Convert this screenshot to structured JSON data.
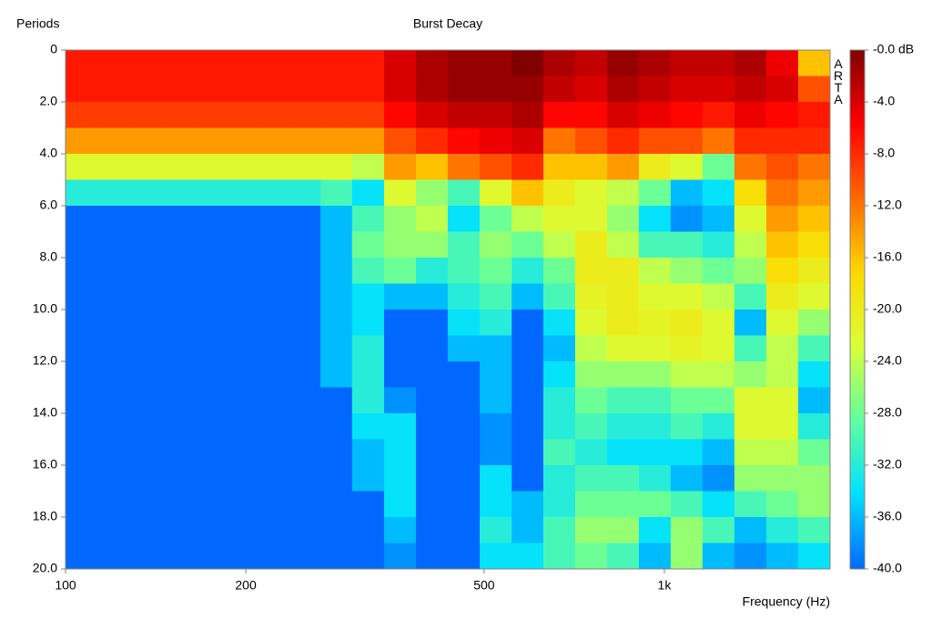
{
  "chart_data": {
    "type": "heatmap",
    "title": "Burst Decay",
    "ylabel": "Periods",
    "xlabel": "Frequency (Hz)",
    "watermark": "ARTA",
    "x": [
      106,
      120,
      136,
      154,
      174,
      196,
      222,
      251,
      283,
      320,
      362,
      409,
      462,
      523,
      591,
      667,
      755,
      853,
      964,
      1089,
      1231,
      1392,
      1573,
      1778
    ],
    "y": [
      0.5,
      1.5,
      2.5,
      3.5,
      4.5,
      5.5,
      6.5,
      7.5,
      8.5,
      9.5,
      10.5,
      11.5,
      12.5,
      13.5,
      14.5,
      15.5,
      16.5,
      17.5,
      18.5,
      19.5
    ],
    "values": [
      [
        -7,
        -7,
        -7,
        -7,
        -7,
        -7,
        -7,
        -7,
        -7,
        -7,
        -4,
        -2,
        -1,
        -1,
        0,
        -2,
        -3,
        -1,
        -2,
        -3,
        -3,
        -2,
        -5,
        -16
      ],
      [
        -7,
        -7,
        -7,
        -7,
        -7,
        -7,
        -7,
        -7,
        -7,
        -7,
        -4,
        -2,
        -1,
        -1,
        -1,
        -3,
        -4,
        -2,
        -3,
        -4,
        -4,
        -3,
        -4,
        -10
      ],
      [
        -9,
        -9,
        -9,
        -9,
        -9,
        -9,
        -9,
        -9,
        -9,
        -9,
        -6,
        -4,
        -3,
        -3,
        -2,
        -6,
        -6,
        -4,
        -5,
        -6,
        -7,
        -5,
        -6,
        -7
      ],
      [
        -14,
        -14,
        -14,
        -14,
        -14,
        -14,
        -14,
        -14,
        -14,
        -14,
        -10,
        -8,
        -6,
        -5,
        -4,
        -12,
        -10,
        -8,
        -10,
        -10,
        -12,
        -8,
        -8,
        -8
      ],
      [
        -22,
        -22,
        -22,
        -22,
        -22,
        -22,
        -22,
        -22,
        -22,
        -24,
        -14,
        -16,
        -12,
        -10,
        -8,
        -16,
        -16,
        -14,
        -20,
        -22,
        -28,
        -12,
        -10,
        -12
      ],
      [
        -32,
        -32,
        -32,
        -32,
        -32,
        -32,
        -32,
        -32,
        -30,
        -34,
        -22,
        -26,
        -30,
        -22,
        -16,
        -20,
        -22,
        -24,
        -28,
        -36,
        -34,
        -18,
        -12,
        -14
      ],
      [
        -40,
        -40,
        -40,
        -40,
        -40,
        -40,
        -40,
        -40,
        -36,
        -30,
        -26,
        -24,
        -34,
        -28,
        -24,
        -22,
        -22,
        -26,
        -34,
        -38,
        -36,
        -22,
        -14,
        -16
      ],
      [
        -40,
        -40,
        -40,
        -40,
        -40,
        -40,
        -40,
        -40,
        -36,
        -28,
        -26,
        -26,
        -30,
        -26,
        -28,
        -24,
        -20,
        -24,
        -30,
        -30,
        -32,
        -24,
        -16,
        -18
      ],
      [
        -40,
        -40,
        -40,
        -40,
        -40,
        -40,
        -40,
        -40,
        -36,
        -30,
        -28,
        -32,
        -30,
        -28,
        -32,
        -28,
        -20,
        -20,
        -24,
        -26,
        -28,
        -26,
        -18,
        -20
      ],
      [
        -40,
        -40,
        -40,
        -40,
        -40,
        -40,
        -40,
        -40,
        -36,
        -34,
        -36,
        -36,
        -32,
        -30,
        -36,
        -30,
        -21,
        -20,
        -22,
        -22,
        -24,
        -30,
        -20,
        -22
      ],
      [
        -40,
        -40,
        -40,
        -40,
        -40,
        -40,
        -40,
        -40,
        -36,
        -34,
        -40,
        -40,
        -34,
        -32,
        -40,
        -34,
        -22,
        -20,
        -21,
        -20,
        -22,
        -36,
        -22,
        -26
      ],
      [
        -40,
        -40,
        -40,
        -40,
        -40,
        -40,
        -40,
        -40,
        -36,
        -32,
        -40,
        -40,
        -36,
        -36,
        -40,
        -36,
        -24,
        -22,
        -22,
        -21,
        -22,
        -30,
        -24,
        -30
      ],
      [
        -40,
        -40,
        -40,
        -40,
        -40,
        -40,
        -40,
        -40,
        -36,
        -32,
        -40,
        -40,
        -40,
        -36,
        -40,
        -34,
        -26,
        -26,
        -26,
        -24,
        -24,
        -26,
        -24,
        -34
      ],
      [
        -40,
        -40,
        -40,
        -40,
        -40,
        -40,
        -40,
        -40,
        -40,
        -32,
        -38,
        -40,
        -40,
        -36,
        -40,
        -32,
        -28,
        -30,
        -30,
        -28,
        -28,
        -22,
        -22,
        -36
      ],
      [
        -40,
        -40,
        -40,
        -40,
        -40,
        -40,
        -40,
        -40,
        -40,
        -34,
        -34,
        -40,
        -40,
        -38,
        -40,
        -32,
        -30,
        -32,
        -32,
        -30,
        -32,
        -22,
        -22,
        -32
      ],
      [
        -40,
        -40,
        -40,
        -40,
        -40,
        -40,
        -40,
        -40,
        -40,
        -36,
        -34,
        -40,
        -40,
        -38,
        -40,
        -30,
        -32,
        -34,
        -34,
        -34,
        -36,
        -24,
        -24,
        -28
      ],
      [
        -40,
        -40,
        -40,
        -40,
        -40,
        -40,
        -40,
        -40,
        -40,
        -36,
        -34,
        -40,
        -40,
        -34,
        -40,
        -32,
        -30,
        -30,
        -32,
        -36,
        -38,
        -26,
        -26,
        -26
      ],
      [
        -40,
        -40,
        -40,
        -40,
        -40,
        -40,
        -40,
        -40,
        -40,
        -40,
        -34,
        -40,
        -40,
        -34,
        -36,
        -32,
        -28,
        -28,
        -28,
        -30,
        -34,
        -30,
        -28,
        -26
      ],
      [
        -40,
        -40,
        -40,
        -40,
        -40,
        -40,
        -40,
        -40,
        -40,
        -40,
        -36,
        -40,
        -40,
        -32,
        -36,
        -30,
        -26,
        -26,
        -34,
        -26,
        -30,
        -36,
        -32,
        -30
      ],
      [
        -40,
        -40,
        -40,
        -40,
        -40,
        -40,
        -40,
        -40,
        -40,
        -40,
        -38,
        -40,
        -40,
        -34,
        -34,
        -30,
        -28,
        -30,
        -36,
        -26,
        -36,
        -38,
        -36,
        -34
      ]
    ],
    "xlim": [
      100,
      1891
    ],
    "xscale": "log",
    "xticks": [
      100,
      200,
      500,
      {
        "value": 1000,
        "label": "1k"
      }
    ],
    "ylim": [
      0,
      20
    ],
    "yticks": [
      0,
      {
        "value": 2,
        "label": "2.0"
      },
      {
        "value": 4,
        "label": "4.0"
      },
      {
        "value": 6,
        "label": "6.0"
      },
      {
        "value": 8,
        "label": "8.0"
      },
      {
        "value": 10,
        "label": "10.0"
      },
      {
        "value": 12,
        "label": "12.0"
      },
      {
        "value": 14,
        "label": "14.0"
      },
      {
        "value": 16,
        "label": "16.0"
      },
      {
        "value": 18,
        "label": "18.0"
      },
      {
        "value": 20,
        "label": "20.0"
      }
    ],
    "clim": [
      -40,
      0
    ],
    "cticks": [
      {
        "value": 0,
        "label": "-0.0 dB"
      },
      {
        "value": -4,
        "label": "-4.0"
      },
      {
        "value": -8,
        "label": "-8.0"
      },
      {
        "value": -12,
        "label": "-12.0"
      },
      {
        "value": -16,
        "label": "-16.0"
      },
      {
        "value": -20,
        "label": "-20.0"
      },
      {
        "value": -24,
        "label": "-24.0"
      },
      {
        "value": -28,
        "label": "-28.0"
      },
      {
        "value": -32,
        "label": "-32.0"
      },
      {
        "value": -36,
        "label": "-36.0"
      },
      {
        "value": -40,
        "label": "-40.0"
      }
    ],
    "colormap": [
      "#800000",
      "#ff0000",
      "#ff6a00",
      "#ffd800",
      "#d8ff38",
      "#60ffa0",
      "#00e0ff",
      "#0068ff"
    ]
  }
}
